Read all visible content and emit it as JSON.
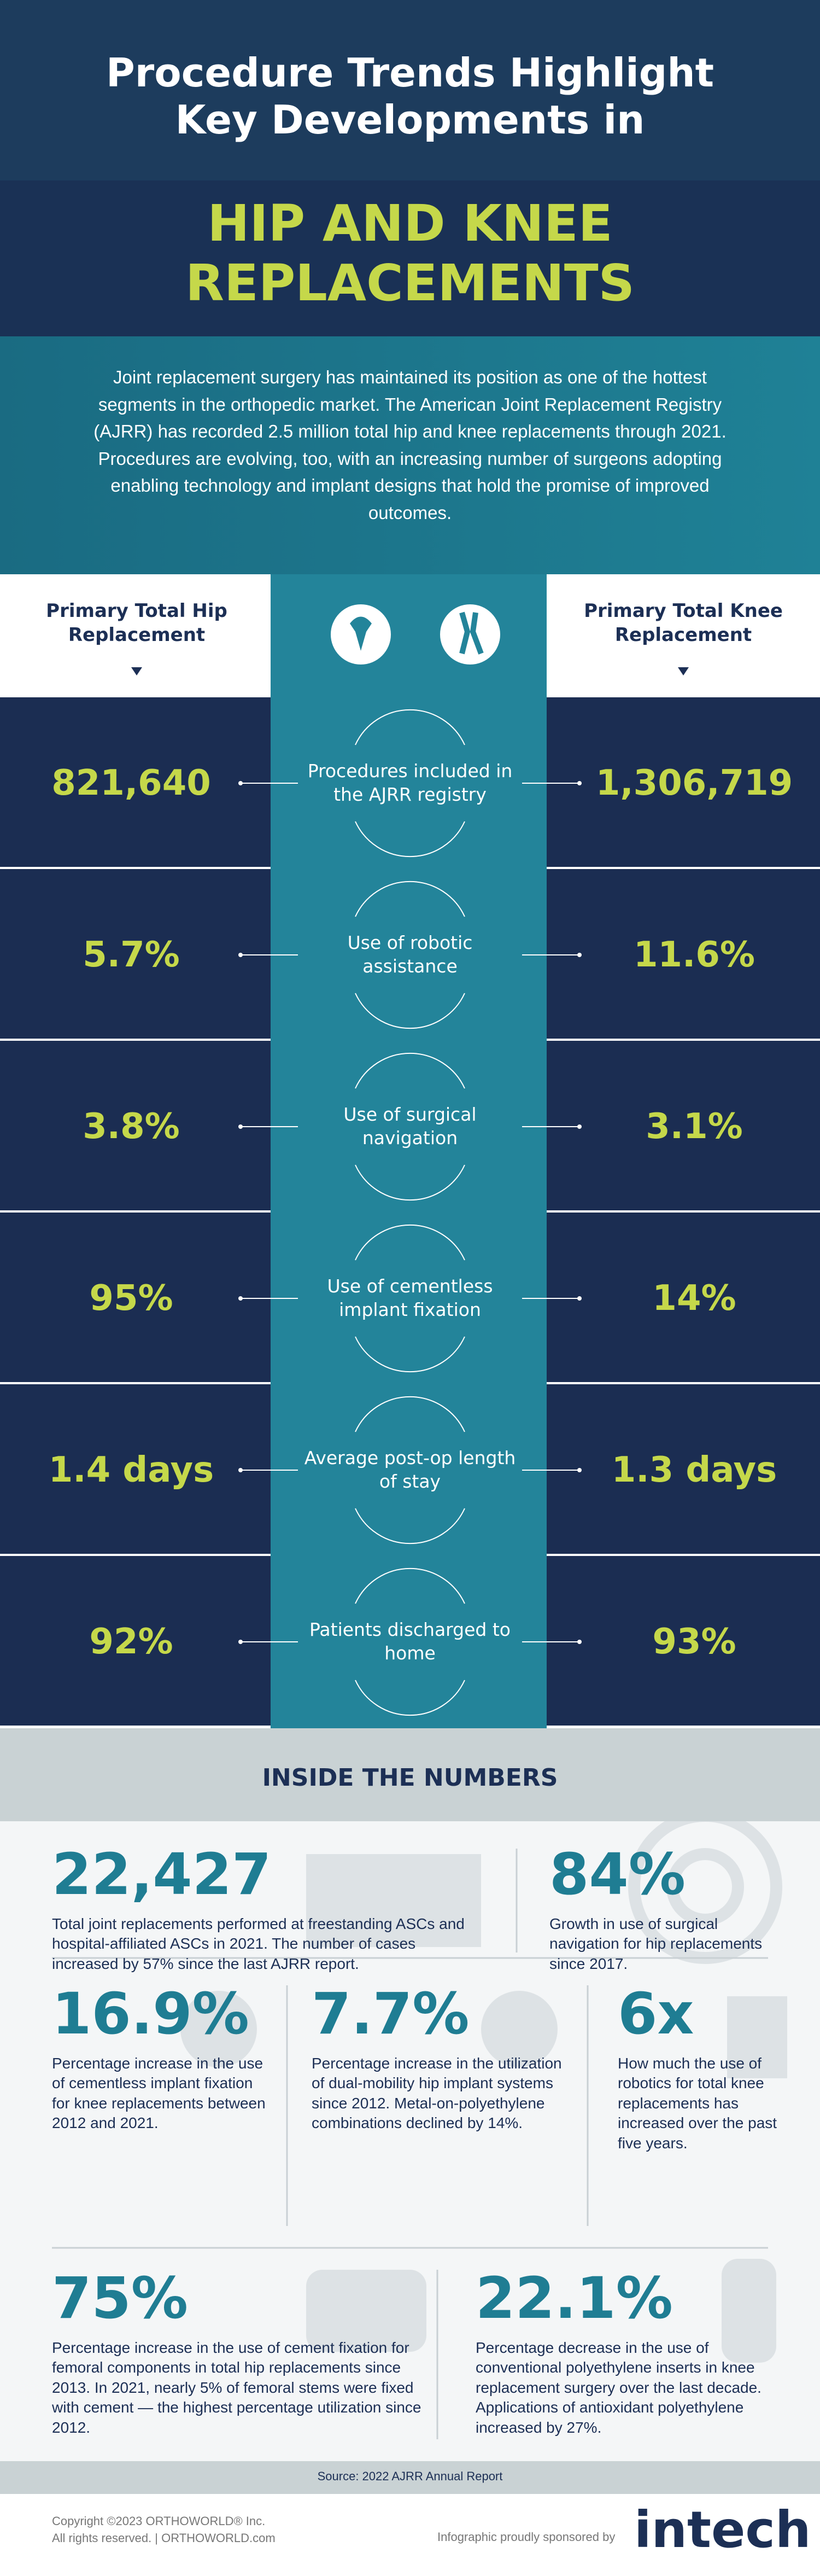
{
  "header": {
    "title": "Procedure Trends Highlight Key Developments in",
    "subtitle": "HIP AND KNEE REPLACEMENTS"
  },
  "intro": "Joint replacement surgery has maintained its position as one of the hottest segments in the orthopedic market. The American Joint Replacement Registry (AJRR) has recorded 2.5 million total hip and knee replacements through 2021. Procedures are evolving, too, with an increasing number of surgeons adopting enabling technology and implant designs that hold the promise of improved outcomes.",
  "table": {
    "left_header": "Primary Total Hip Replacement",
    "right_header": "Primary Total Knee Replacement",
    "rows": [
      {
        "hip": "821,640",
        "label": "Procedures included in the AJRR registry",
        "knee": "1,306,719"
      },
      {
        "hip": "5.7%",
        "label": "Use of robotic assistance",
        "knee": "11.6%"
      },
      {
        "hip": "3.8%",
        "label": "Use of surgical navigation",
        "knee": "3.1%"
      },
      {
        "hip": "95%",
        "label": "Use of cementless implant fixation",
        "knee": "14%"
      },
      {
        "hip": "1.4 days",
        "label": "Average post-op length of stay",
        "knee": "1.3 days"
      },
      {
        "hip": "92%",
        "label": "Patients discharged to home",
        "knee": "93%"
      }
    ]
  },
  "inside": {
    "title": "INSIDE THE NUMBERS",
    "stats": [
      {
        "value": "22,427",
        "text": "Total joint replacements performed at freestanding ASCs and hospital-affiliated ASCs in 2021. The number of cases increased by 57% since the last AJRR report."
      },
      {
        "value": "84%",
        "text": "Growth in use of surgical navigation for hip replacements since 2017."
      },
      {
        "value": "16.9%",
        "text": "Percentage increase in the use of cementless implant fixation for knee replacements between 2012 and 2021."
      },
      {
        "value": "7.7%",
        "text": "Percentage increase in the utilization of dual-mobility hip implant systems since 2012. Metal-on-polyethylene combinations declined by 14%."
      },
      {
        "value": "6x",
        "text": "How much the use of robotics for total knee replacements has increased over the past five years."
      },
      {
        "value": "75%",
        "text": "Percentage increase in the use of cement fixation for femoral components in total hip replacements since 2013. In 2021, nearly 5% of femoral stems were fixed with cement — the highest percentage utilization since 2012."
      },
      {
        "value": "22.1%",
        "text": "Percentage decrease in the use of conventional polyethylene inserts in knee replacement surgery over the last decade. Applications of antioxidant polyethylene increased by 27%."
      }
    ]
  },
  "source": "Source: 2022 AJRR Annual Report",
  "footer": {
    "copyright": "Copyright ©2023 ORTHOWORLD® Inc.",
    "rights": "All rights reserved. | ORTHOWORLD.com",
    "sponsor_text": "Infographic proudly sponsored by",
    "sponsor_logo": "intech"
  }
}
